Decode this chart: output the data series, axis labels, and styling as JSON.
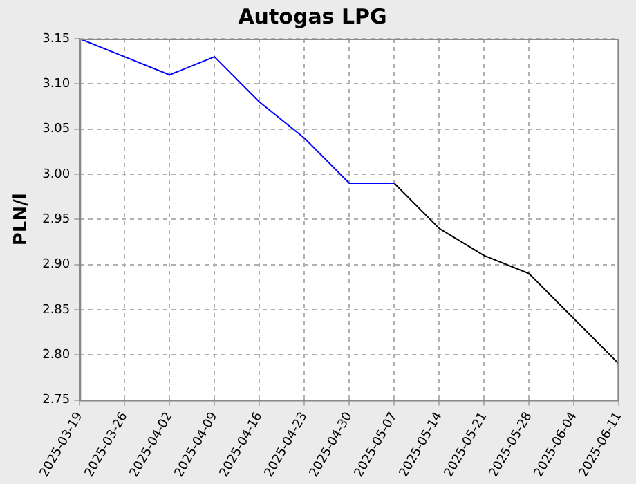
{
  "chart_data": {
    "type": "line",
    "title": "Autogas LPG",
    "ylabel": "PLN/l",
    "categories": [
      "2025-03-19",
      "2025-03-26",
      "2025-04-02",
      "2025-04-09",
      "2025-04-16",
      "2025-04-23",
      "2025-04-30",
      "2025-05-07",
      "2025-05-14",
      "2025-05-21",
      "2025-05-28",
      "2025-06-04",
      "2025-06-11"
    ],
    "series": [
      {
        "color": "#0000ff",
        "values": [
          3.15,
          3.13,
          3.11,
          3.13,
          3.08,
          3.04,
          2.99,
          2.99,
          null,
          null,
          null,
          null,
          null
        ]
      },
      {
        "color": "#000000",
        "values": [
          null,
          null,
          null,
          null,
          null,
          null,
          null,
          2.99,
          2.94,
          2.91,
          2.89,
          2.84,
          2.79
        ]
      }
    ],
    "ylim": [
      2.75,
      3.15
    ],
    "yticks": [
      {
        "value": 2.75,
        "label": "2.75"
      },
      {
        "value": 2.8,
        "label": "2.80"
      },
      2.85,
      {
        "value": 2.9,
        "label": "2.90"
      },
      2.95,
      {
        "value": 3,
        "label": "3.00"
      },
      3.05,
      {
        "value": 3.1,
        "label": "3.10"
      },
      3.15
    ],
    "grid": true,
    "legend": false,
    "marker": "none",
    "line_style": "solid"
  }
}
